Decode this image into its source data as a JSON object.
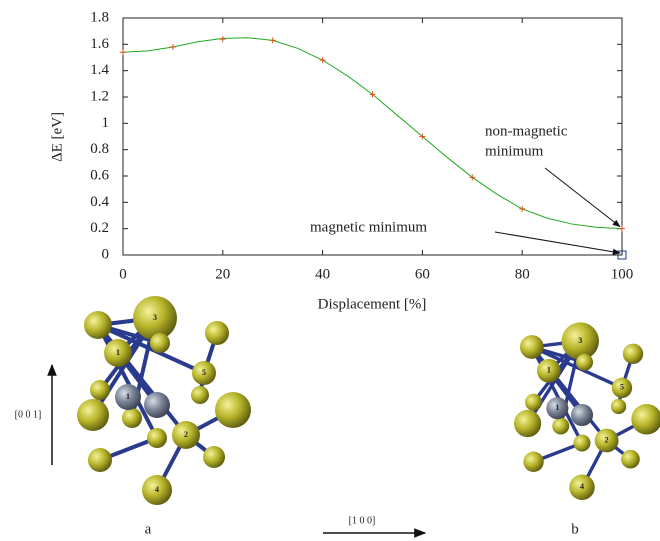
{
  "chart_data": {
    "type": "line",
    "xlabel": "Displacement [%]",
    "ylabel": "ΔE [eV]",
    "xlim": [
      0,
      100
    ],
    "xticks": [
      0,
      20,
      40,
      60,
      80,
      100
    ],
    "ylim": [
      0,
      1.8
    ],
    "yticks": [
      0,
      0.2,
      0.4,
      0.6,
      0.8,
      1,
      1.2,
      1.4,
      1.6,
      1.8
    ],
    "series": [
      {
        "color": "#22a822",
        "marker": "none",
        "x": [
          0,
          5,
          10,
          15,
          20,
          25,
          30,
          35,
          40,
          45,
          50,
          55,
          60,
          65,
          70,
          75,
          80,
          85,
          90,
          95,
          100
        ],
        "values": [
          1.54,
          1.55,
          1.58,
          1.62,
          1.645,
          1.65,
          1.63,
          1.57,
          1.48,
          1.36,
          1.22,
          1.06,
          0.9,
          0.74,
          0.59,
          0.46,
          0.35,
          0.28,
          0.235,
          0.21,
          0.2
        ]
      },
      {
        "color": "#d9541e",
        "marker": "plus",
        "x": [
          0,
          10,
          20,
          30,
          40,
          50,
          60,
          70,
          80,
          100
        ],
        "values": [
          1.54,
          1.58,
          1.64,
          1.63,
          1.48,
          1.22,
          0.9,
          0.59,
          0.35,
          0.2
        ]
      },
      {
        "color": "#1a3a8a",
        "marker": "square",
        "x": [
          100
        ],
        "values": [
          0
        ]
      }
    ],
    "annotations": [
      {
        "lines": [
          "non-magnetic",
          "minimum"
        ],
        "x": 100,
        "y": 0.2
      },
      {
        "lines": [
          "magnetic minimum"
        ],
        "x": 100,
        "y": 0
      }
    ]
  },
  "figure": {
    "panels": [
      {
        "label": "a",
        "atoms": [
          "3",
          "1",
          "5",
          "1",
          "2",
          "4"
        ]
      },
      {
        "label": "b",
        "atoms": [
          "3",
          "1",
          "5",
          "1",
          "2",
          "4"
        ]
      }
    ],
    "directions": [
      "[0 0 1]",
      "[1 0 0]"
    ]
  }
}
